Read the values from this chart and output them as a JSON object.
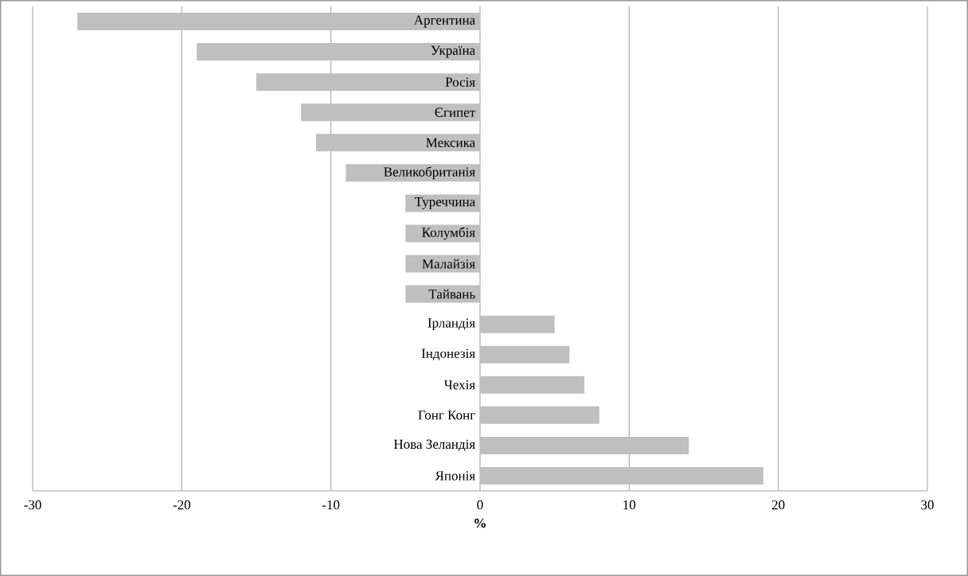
{
  "chart_data": {
    "type": "bar",
    "orientation": "horizontal",
    "xlabel": "%",
    "categories": [
      "Аргентина",
      "Україна",
      "Росія",
      "Єгипет",
      "Мексика",
      "Великобританія",
      "Туреччина",
      "Колумбія",
      "Малайзія",
      "Тайвань",
      "Ірландія",
      "Індонезія",
      "Чехія",
      "Гонг Конг",
      "Нова Зеландія",
      "Японія"
    ],
    "values": [
      -27,
      -19,
      -15,
      -12,
      -11,
      -9,
      -5,
      -5,
      -5,
      -5,
      5,
      6,
      7,
      8,
      14,
      19
    ],
    "color": "#bfbfbf",
    "xlim": [
      -30,
      30
    ],
    "xticks": [
      -30,
      -20,
      -10,
      0,
      10,
      20,
      30
    ],
    "grid": "x"
  }
}
